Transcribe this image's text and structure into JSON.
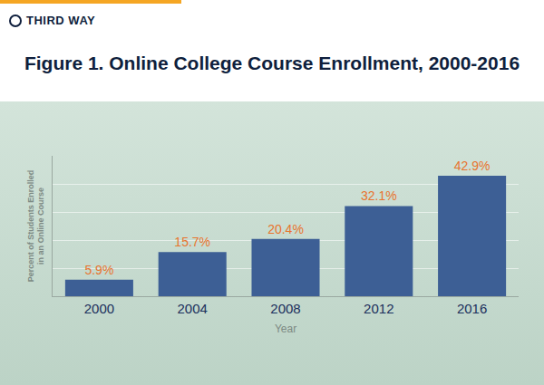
{
  "brand": "THIRD WAY",
  "chart_data": {
    "type": "bar",
    "title": "Figure 1. Online College Course Enrollment, 2000-2016",
    "x_label": "Year",
    "y_label": "Percent of Students Enrolled\nin an Online Course",
    "categories": [
      "2000",
      "2004",
      "2008",
      "2012",
      "2016"
    ],
    "values": [
      5.9,
      15.7,
      20.4,
      32.1,
      42.9
    ],
    "value_labels": [
      "5.9%",
      "15.7%",
      "20.4%",
      "32.1%",
      "42.9%"
    ],
    "data_labels": true,
    "color": "#3d5f95",
    "ylim": [
      0,
      50
    ],
    "yticks": [
      0,
      10,
      20,
      30,
      40,
      50
    ],
    "grid": true,
    "tick_labels": "x"
  }
}
